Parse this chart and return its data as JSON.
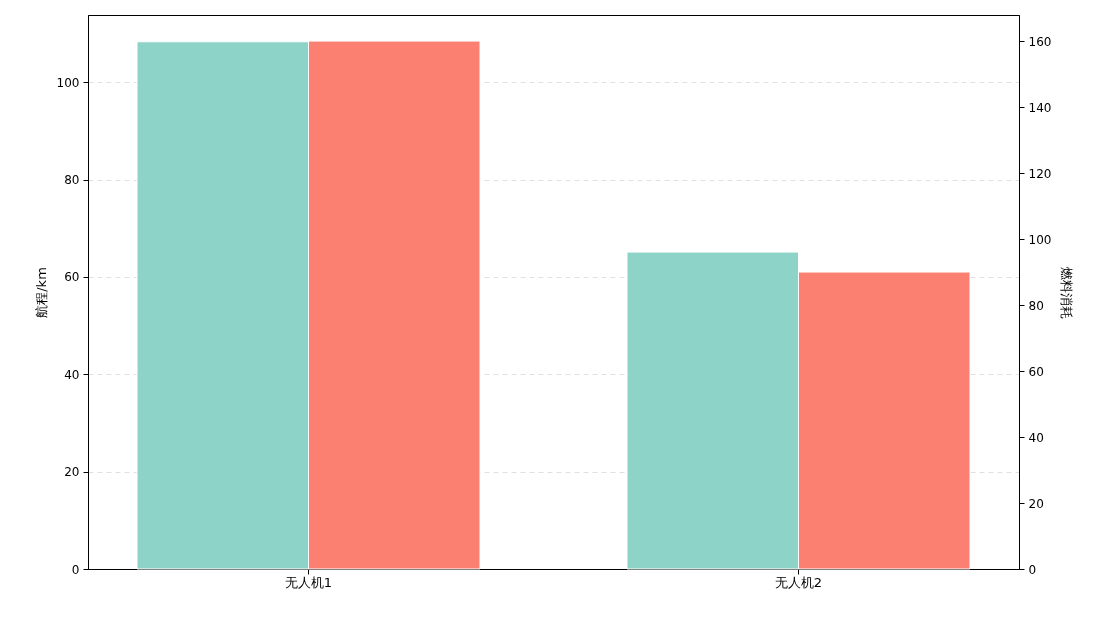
{
  "chart_data": {
    "type": "bar",
    "categories": [
      "无人机1",
      "无人机2"
    ],
    "ylabel": "航程/km",
    "y2label": "燃料消耗",
    "series": [
      {
        "color": "#8dd3c7",
        "values": [
          108.3,
          65.1
        ]
      },
      {
        "color": "#fb8072",
        "values": [
          160,
          90
        ],
        "axis": "y2"
      }
    ],
    "ylim": [
      0,
      113.8
    ],
    "yticks": [
      0,
      20,
      40,
      60,
      80,
      100
    ],
    "y2lim": [
      0,
      167.9
    ],
    "y2ticks": [
      0,
      20,
      40,
      60,
      80,
      100,
      120,
      140,
      160
    ],
    "grid": "y"
  }
}
